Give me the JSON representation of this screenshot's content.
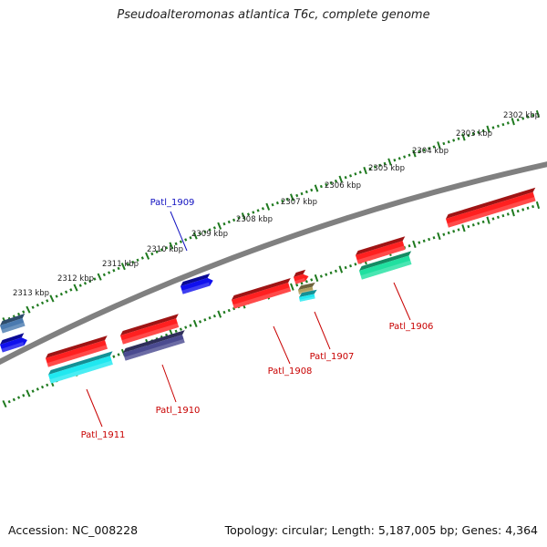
{
  "title": "Pseudoalteromonas atlantica T6c, complete genome",
  "footer": {
    "accession": "Accession: NC_008228",
    "info": "Topology: circular; Length: 5,187,005 bp; Genes: 4,364"
  },
  "colors": {
    "backbone": "#808080",
    "ticks": "#1f7a1f",
    "red": "#ff2020",
    "blue": "#1010ee",
    "cyan": "#20e8f0",
    "green": "#20e0a0",
    "slate": "#4a4a90",
    "steel": "#4a7ab0",
    "tan": "#b0a060",
    "label_red": "#c80000",
    "label_blue": "#1010c0"
  },
  "scale_labels": [
    "2302 kbp",
    "2303 kbp",
    "2304 kbp",
    "2305 kbp",
    "2306 kbp",
    "2307 kbp",
    "2308 kbp",
    "2309 kbp",
    "2310 kbp",
    "2311 kbp",
    "2312 kbp",
    "2313 kbp"
  ],
  "gene_labels": [
    "Patl_1906",
    "Patl_1907",
    "Patl_1908",
    "Patl_1909",
    "Patl_1910",
    "Patl_1911"
  ]
}
